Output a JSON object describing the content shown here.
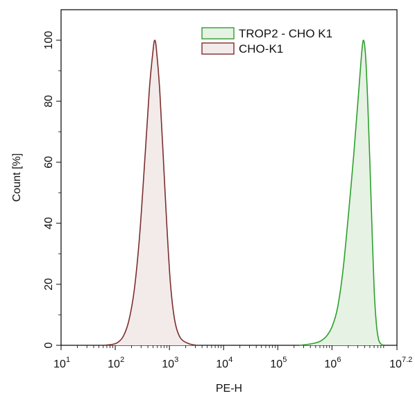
{
  "chart_data": {
    "type": "area",
    "xlabel": "PE-H",
    "ylabel": "Count [%]",
    "x_scale": "log10",
    "xlim_log10": [
      1,
      7.2
    ],
    "ylim": [
      0,
      110
    ],
    "x_major_ticks": [
      {
        "base": "10",
        "exp": "1",
        "log10": 1
      },
      {
        "base": "10",
        "exp": "2",
        "log10": 2
      },
      {
        "base": "10",
        "exp": "3",
        "log10": 3
      },
      {
        "base": "10",
        "exp": "4",
        "log10": 4
      },
      {
        "base": "10",
        "exp": "5",
        "log10": 5
      },
      {
        "base": "10",
        "exp": "6",
        "log10": 6
      },
      {
        "base": "10",
        "exp": "7.2",
        "log10": 7.2
      }
    ],
    "y_ticks": [
      0,
      20,
      40,
      60,
      80,
      100
    ],
    "y_tick_labels": [
      "0",
      "20",
      "40",
      "60",
      "80",
      "100"
    ],
    "grid": false,
    "legend_position": "top-right",
    "series": [
      {
        "name": "TROP2 - CHO K1",
        "stroke": "#2ca02c",
        "fill": "#e6f2e4",
        "points_log10": [
          [
            5.4,
            0
          ],
          [
            5.55,
            0.3
          ],
          [
            5.7,
            0.8
          ],
          [
            5.8,
            1.5
          ],
          [
            5.9,
            3
          ],
          [
            6.0,
            6
          ],
          [
            6.1,
            12
          ],
          [
            6.2,
            24
          ],
          [
            6.3,
            42
          ],
          [
            6.4,
            62
          ],
          [
            6.48,
            80
          ],
          [
            6.54,
            94
          ],
          [
            6.58,
            100
          ],
          [
            6.62,
            95
          ],
          [
            6.66,
            80
          ],
          [
            6.7,
            60
          ],
          [
            6.74,
            38
          ],
          [
            6.78,
            18
          ],
          [
            6.82,
            7
          ],
          [
            6.86,
            2
          ],
          [
            6.9,
            0.5
          ],
          [
            6.95,
            0
          ]
        ]
      },
      {
        "name": "CHO-K1",
        "stroke": "#7a2e2e",
        "fill": "#f3ebea",
        "points_log10": [
          [
            1.8,
            0
          ],
          [
            1.95,
            0.3
          ],
          [
            2.05,
            1
          ],
          [
            2.15,
            3
          ],
          [
            2.25,
            8
          ],
          [
            2.35,
            18
          ],
          [
            2.45,
            36
          ],
          [
            2.55,
            62
          ],
          [
            2.63,
            84
          ],
          [
            2.7,
            97
          ],
          [
            2.73,
            100
          ],
          [
            2.76,
            97
          ],
          [
            2.82,
            84
          ],
          [
            2.88,
            64
          ],
          [
            2.95,
            40
          ],
          [
            3.02,
            20
          ],
          [
            3.1,
            8
          ],
          [
            3.2,
            2.5
          ],
          [
            3.35,
            0.6
          ],
          [
            3.5,
            0
          ]
        ]
      }
    ]
  }
}
